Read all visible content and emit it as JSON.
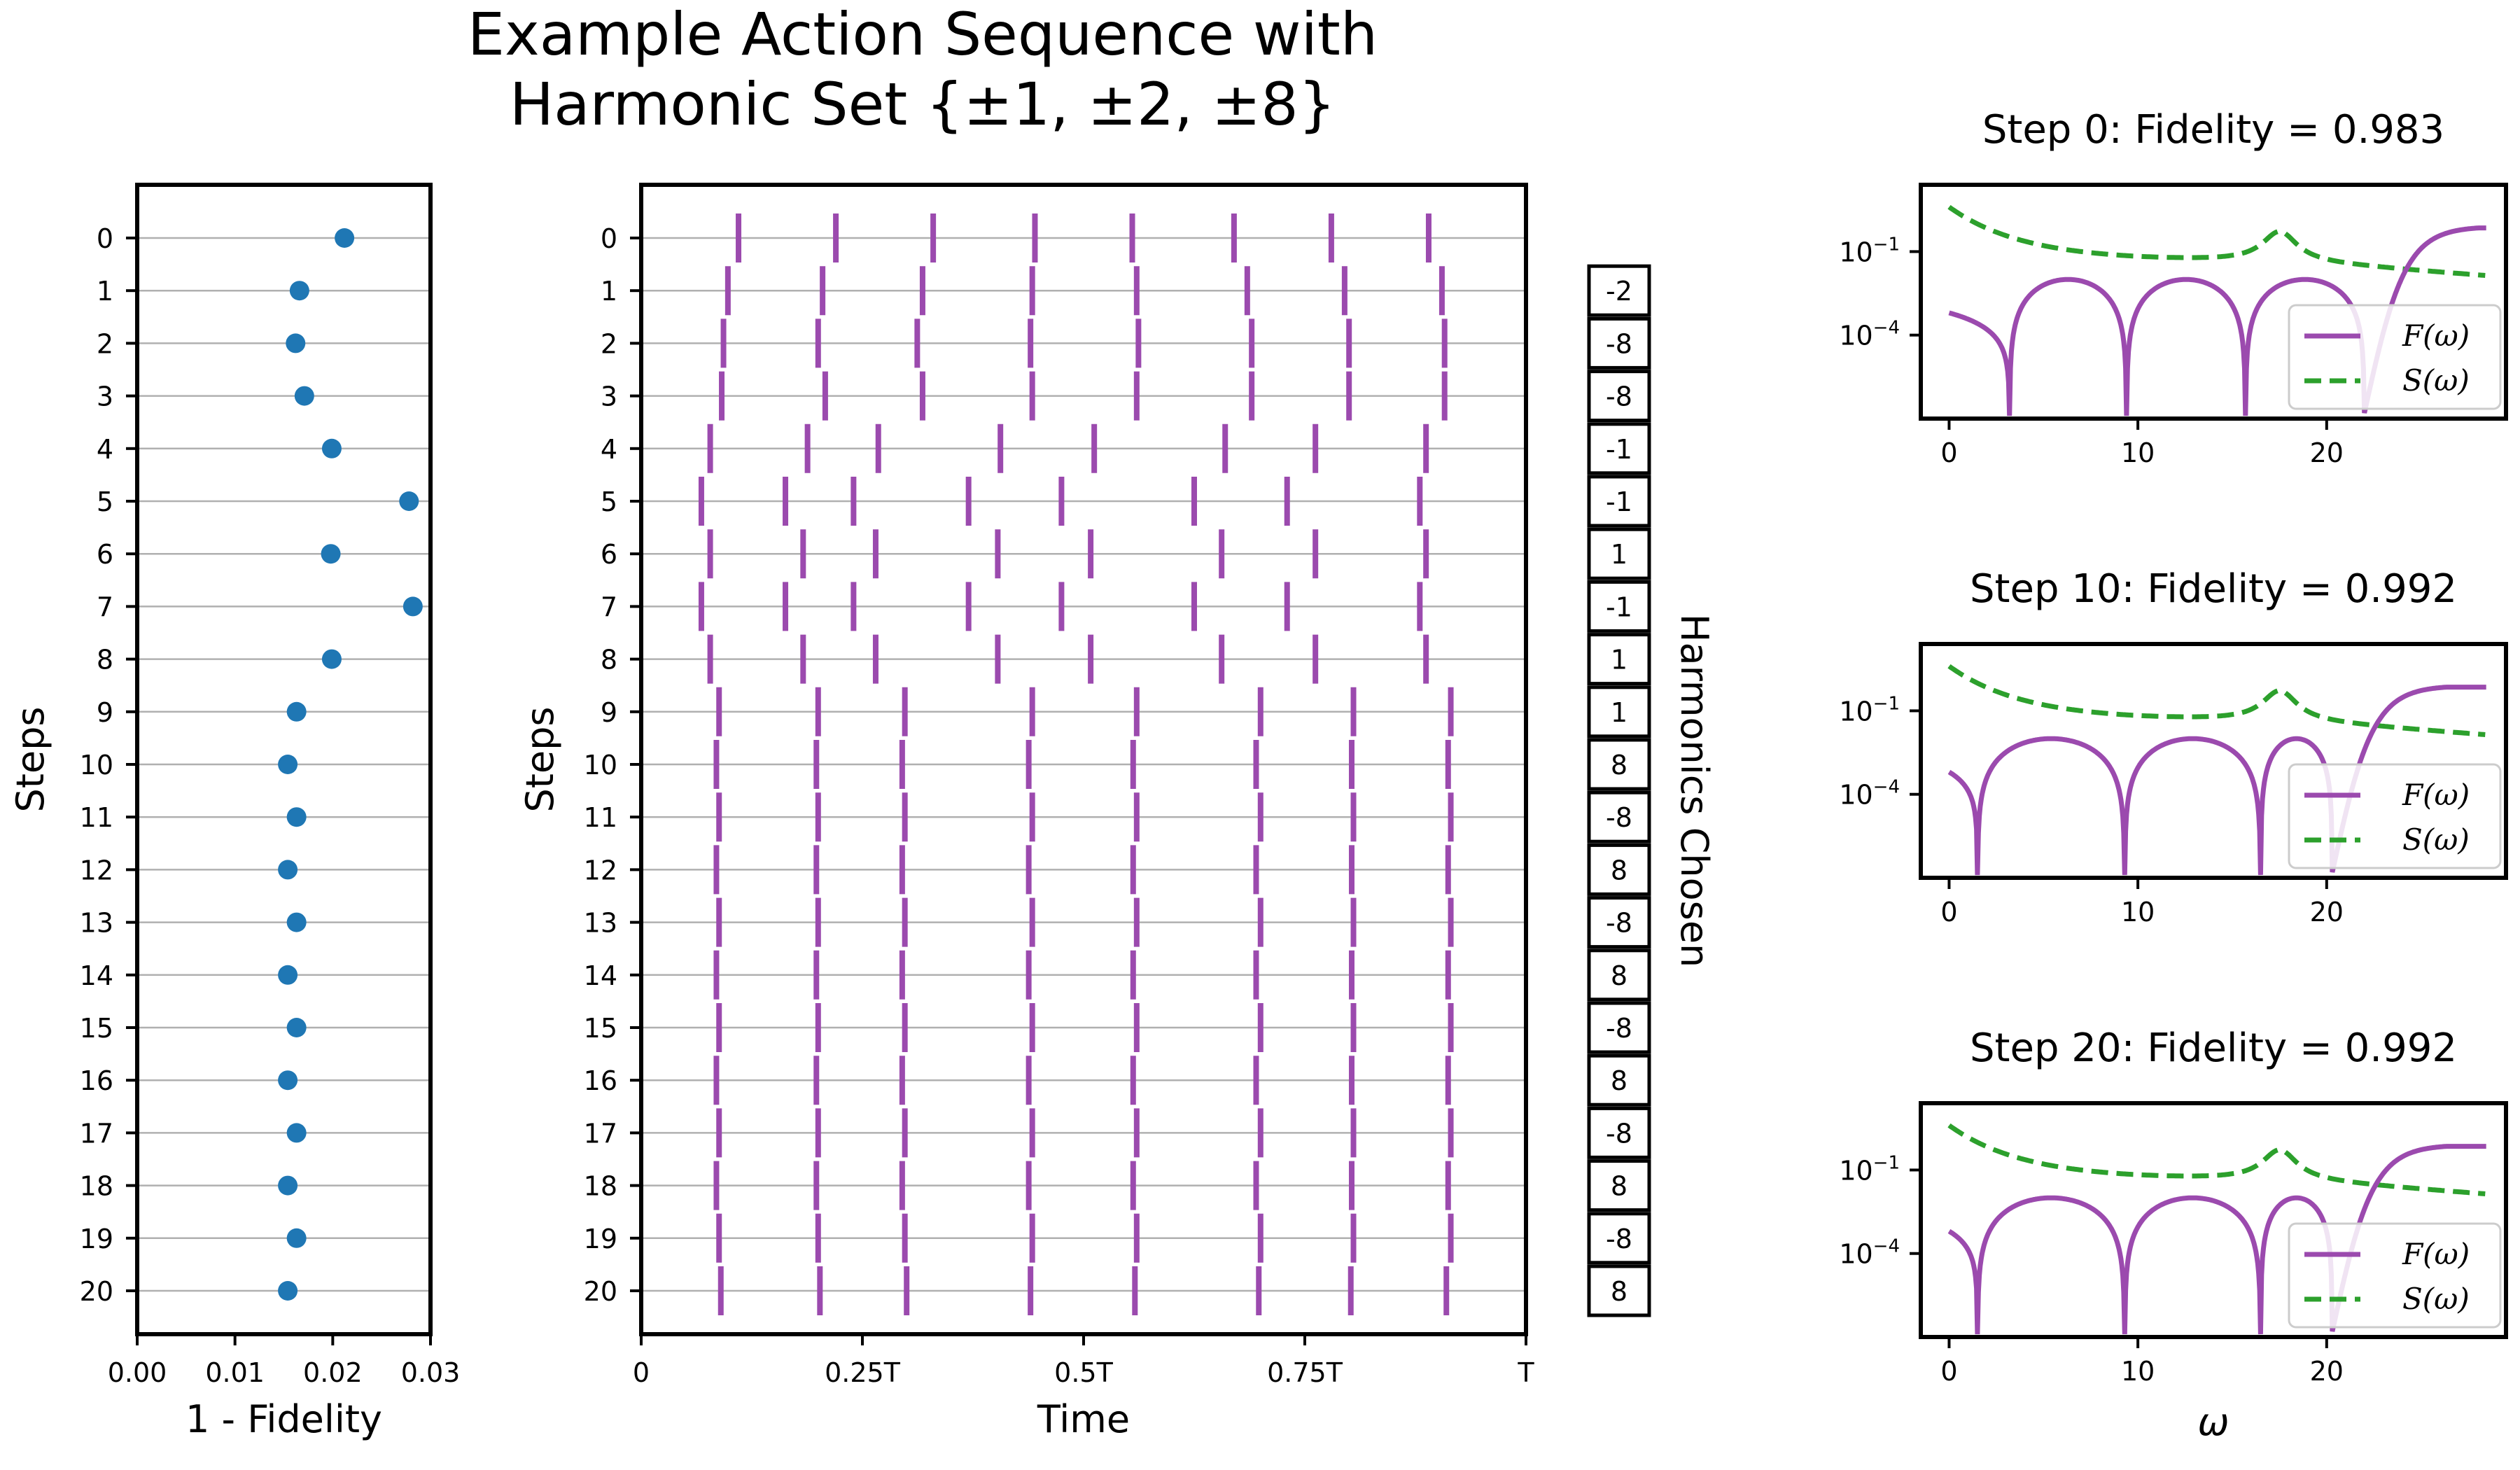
{
  "figure": {
    "title_line1": "Example Action Sequence with",
    "title_line2": "Harmonic Set {±1, ±2, ±8}"
  },
  "colors": {
    "scatter": "#1f77b4",
    "pulse": "#9b4aae",
    "F": "#9b4aae",
    "S": "#2ca02c",
    "grid": "#b0b0b0"
  },
  "chart_data": [
    {
      "type": "scatter",
      "xlabel": "1 - Fidelity",
      "ylabel": "Steps",
      "xlim": [
        0.0,
        0.03
      ],
      "ylim": [
        21,
        -1
      ],
      "xticks": [
        "0.00",
        "0.01",
        "0.02",
        "0.03"
      ],
      "yticks": [
        "0",
        "1",
        "2",
        "3",
        "4",
        "5",
        "6",
        "7",
        "8",
        "9",
        "10",
        "11",
        "12",
        "13",
        "14",
        "15",
        "16",
        "17",
        "18",
        "19",
        "20"
      ],
      "grid": "horizontal",
      "points": [
        [
          0.0212,
          0
        ],
        [
          0.0166,
          1
        ],
        [
          0.0162,
          2
        ],
        [
          0.0171,
          3
        ],
        [
          0.0199,
          4
        ],
        [
          0.0278,
          5
        ],
        [
          0.0198,
          6
        ],
        [
          0.0282,
          7
        ],
        [
          0.0199,
          8
        ],
        [
          0.0163,
          9
        ],
        [
          0.0154,
          10
        ],
        [
          0.0163,
          11
        ],
        [
          0.0154,
          12
        ],
        [
          0.0163,
          13
        ],
        [
          0.0154,
          14
        ],
        [
          0.0163,
          15
        ],
        [
          0.0154,
          16
        ],
        [
          0.0163,
          17
        ],
        [
          0.0154,
          18
        ],
        [
          0.0163,
          19
        ],
        [
          0.0154,
          20
        ]
      ]
    },
    {
      "type": "event_plot",
      "xlabel": "Time",
      "ylabel": "Steps",
      "xlim": [
        0,
        1
      ],
      "xticks": [
        "0",
        "0.25T",
        "0.5T",
        "0.75T",
        "T"
      ],
      "yticks": [
        "0",
        "1",
        "2",
        "3",
        "4",
        "5",
        "6",
        "7",
        "8",
        "9",
        "10",
        "11",
        "12",
        "13",
        "14",
        "15",
        "16",
        "17",
        "18",
        "19",
        "20"
      ],
      "grid": "horizontal",
      "pulse_times": [
        [
          0.11,
          0.22,
          0.33,
          0.445,
          0.555,
          0.67,
          0.78,
          0.89
        ],
        [
          0.098,
          0.205,
          0.318,
          0.442,
          0.56,
          0.685,
          0.795,
          0.905
        ],
        [
          0.093,
          0.2,
          0.312,
          0.44,
          0.562,
          0.69,
          0.8,
          0.908
        ],
        [
          0.091,
          0.208,
          0.318,
          0.442,
          0.56,
          0.69,
          0.8,
          0.908
        ],
        [
          0.078,
          0.188,
          0.268,
          0.406,
          0.512,
          0.66,
          0.762,
          0.887
        ],
        [
          0.068,
          0.163,
          0.24,
          0.37,
          0.475,
          0.625,
          0.73,
          0.88
        ],
        [
          0.078,
          0.183,
          0.265,
          0.403,
          0.508,
          0.656,
          0.762,
          0.887
        ],
        [
          0.068,
          0.163,
          0.24,
          0.37,
          0.475,
          0.625,
          0.73,
          0.88
        ],
        [
          0.078,
          0.183,
          0.265,
          0.403,
          0.508,
          0.656,
          0.762,
          0.887
        ],
        [
          0.088,
          0.2,
          0.298,
          0.442,
          0.56,
          0.7,
          0.805,
          0.915
        ],
        [
          0.085,
          0.198,
          0.295,
          0.438,
          0.556,
          0.695,
          0.803,
          0.912
        ],
        [
          0.088,
          0.2,
          0.298,
          0.442,
          0.56,
          0.7,
          0.805,
          0.915
        ],
        [
          0.085,
          0.198,
          0.295,
          0.438,
          0.556,
          0.695,
          0.803,
          0.912
        ],
        [
          0.088,
          0.2,
          0.298,
          0.442,
          0.56,
          0.7,
          0.805,
          0.915
        ],
        [
          0.085,
          0.198,
          0.295,
          0.438,
          0.556,
          0.695,
          0.803,
          0.912
        ],
        [
          0.088,
          0.2,
          0.298,
          0.442,
          0.56,
          0.7,
          0.805,
          0.915
        ],
        [
          0.085,
          0.198,
          0.295,
          0.438,
          0.556,
          0.695,
          0.803,
          0.912
        ],
        [
          0.088,
          0.2,
          0.298,
          0.442,
          0.56,
          0.7,
          0.805,
          0.915
        ],
        [
          0.085,
          0.198,
          0.295,
          0.438,
          0.556,
          0.695,
          0.803,
          0.912
        ],
        [
          0.088,
          0.2,
          0.298,
          0.442,
          0.56,
          0.7,
          0.805,
          0.915
        ],
        [
          0.09,
          0.202,
          0.3,
          0.44,
          0.558,
          0.698,
          0.802,
          0.91
        ]
      ]
    },
    {
      "type": "table",
      "label": "Harmonics Chosen",
      "values": [
        "-2",
        "-8",
        "-8",
        "-1",
        "-1",
        "1",
        "-1",
        "1",
        "1",
        "8",
        "-8",
        "8",
        "-8",
        "8",
        "-8",
        "8",
        "-8",
        "8",
        "-8",
        "8"
      ]
    },
    {
      "type": "line",
      "title": "Step 0: Fidelity = 0.983",
      "xlabel": "",
      "ylog": true,
      "xlim": [
        -1.5,
        29.5
      ],
      "ylim_log10": [
        -7,
        1.4
      ],
      "xticks": [
        "0",
        "10",
        "20"
      ],
      "yticks": [
        {
          "base": "10",
          "exp": "−1",
          "v": -1
        },
        {
          "base": "10",
          "exp": "−4",
          "v": -4
        }
      ],
      "legend": {
        "position": "lower-right",
        "F": "F(ω)",
        "S": "S(ω)"
      },
      "F_zeros": [
        3.2,
        9.4,
        15.7,
        22.0
      ],
      "S_peak": 17.5
    },
    {
      "type": "line",
      "title": "Step 10: Fidelity = 0.992",
      "xlabel": "",
      "ylog": true,
      "xlim": [
        -1.5,
        29.5
      ],
      "ylim_log10": [
        -7,
        1.4
      ],
      "xticks": [
        "0",
        "10",
        "20"
      ],
      "yticks": [
        {
          "base": "10",
          "exp": "−1",
          "v": -1
        },
        {
          "base": "10",
          "exp": "−4",
          "v": -4
        }
      ],
      "legend": {
        "position": "lower-right",
        "F": "F(ω)",
        "S": "S(ω)"
      },
      "F_zeros": [
        1.5,
        9.3,
        16.5,
        20.3
      ],
      "S_peak": 17.5
    },
    {
      "type": "line",
      "title": "Step 20: Fidelity = 0.992",
      "xlabel": "ω",
      "ylog": true,
      "xlim": [
        -1.5,
        29.5
      ],
      "ylim_log10": [
        -7,
        1.4
      ],
      "xticks": [
        "0",
        "10",
        "20"
      ],
      "yticks": [
        {
          "base": "10",
          "exp": "−1",
          "v": -1
        },
        {
          "base": "10",
          "exp": "−4",
          "v": -4
        }
      ],
      "legend": {
        "position": "lower-right",
        "F": "F(ω)",
        "S": "S(ω)"
      },
      "F_zeros": [
        1.5,
        9.3,
        16.5,
        20.3
      ],
      "S_peak": 17.5
    }
  ]
}
